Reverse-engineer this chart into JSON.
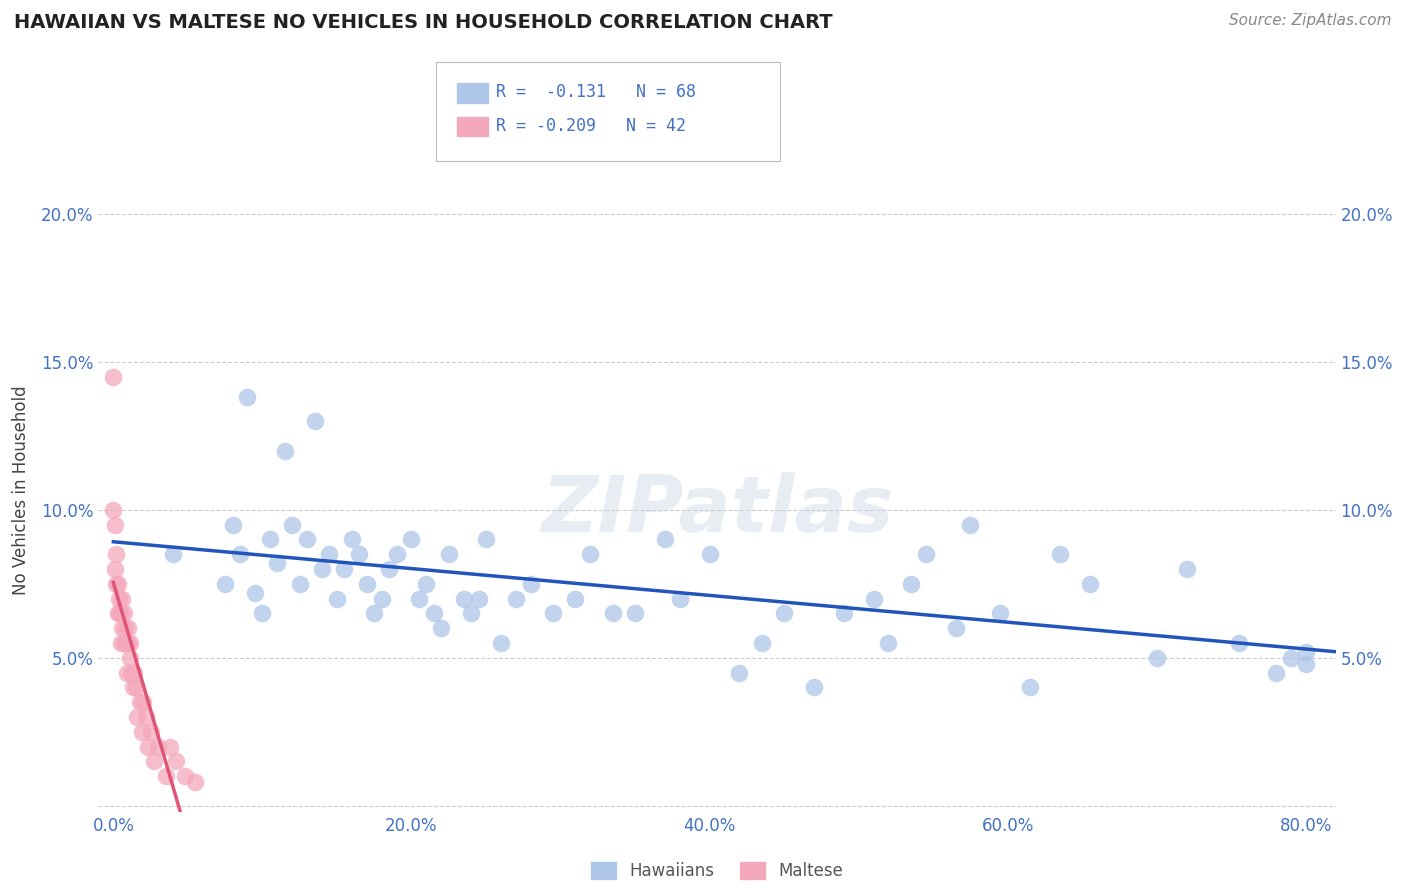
{
  "title": "HAWAIIAN VS MALTESE NO VEHICLES IN HOUSEHOLD CORRELATION CHART",
  "source": "Source: ZipAtlas.com",
  "ylabel": "No Vehicles in Household",
  "xlim": [
    -0.01,
    0.82
  ],
  "ylim": [
    -0.002,
    0.215
  ],
  "xticks": [
    0.0,
    0.2,
    0.4,
    0.6,
    0.8
  ],
  "xticklabels": [
    "0.0%",
    "20.0%",
    "40.0%",
    "60.0%",
    "80.0%"
  ],
  "yticks": [
    0.0,
    0.05,
    0.1,
    0.15,
    0.2
  ],
  "yticklabels": [
    "",
    "5.0%",
    "10.0%",
    "15.0%",
    "20.0%"
  ],
  "legend_r_hawaiian": "-0.131",
  "legend_n_hawaiian": "68",
  "legend_r_maltese": "-0.209",
  "legend_n_maltese": "42",
  "hawaiian_color": "#aec6e8",
  "maltese_color": "#f4a8bb",
  "trend_hawaiian_color": "#2255bb",
  "trend_maltese_color": "#e05575",
  "watermark": "ZIPatlas",
  "hawaiian_x": [
    0.04,
    0.075,
    0.08,
    0.085,
    0.09,
    0.095,
    0.1,
    0.105,
    0.11,
    0.115,
    0.12,
    0.125,
    0.13,
    0.135,
    0.14,
    0.145,
    0.15,
    0.155,
    0.16,
    0.165,
    0.17,
    0.175,
    0.18,
    0.185,
    0.19,
    0.2,
    0.205,
    0.21,
    0.215,
    0.22,
    0.225,
    0.235,
    0.24,
    0.245,
    0.25,
    0.26,
    0.27,
    0.28,
    0.295,
    0.31,
    0.32,
    0.335,
    0.35,
    0.37,
    0.38,
    0.4,
    0.42,
    0.435,
    0.45,
    0.47,
    0.49,
    0.51,
    0.52,
    0.535,
    0.545,
    0.565,
    0.575,
    0.595,
    0.615,
    0.635,
    0.655,
    0.7,
    0.72,
    0.755,
    0.78,
    0.79,
    0.8,
    0.8
  ],
  "hawaiian_y": [
    0.085,
    0.075,
    0.095,
    0.085,
    0.138,
    0.072,
    0.065,
    0.09,
    0.082,
    0.12,
    0.095,
    0.075,
    0.09,
    0.13,
    0.08,
    0.085,
    0.07,
    0.08,
    0.09,
    0.085,
    0.075,
    0.065,
    0.07,
    0.08,
    0.085,
    0.09,
    0.07,
    0.075,
    0.065,
    0.06,
    0.085,
    0.07,
    0.065,
    0.07,
    0.09,
    0.055,
    0.07,
    0.075,
    0.065,
    0.07,
    0.085,
    0.065,
    0.065,
    0.09,
    0.07,
    0.085,
    0.045,
    0.055,
    0.065,
    0.04,
    0.065,
    0.07,
    0.055,
    0.075,
    0.085,
    0.06,
    0.095,
    0.065,
    0.04,
    0.085,
    0.075,
    0.05,
    0.08,
    0.055,
    0.045,
    0.05,
    0.052,
    0.048
  ],
  "maltese_x": [
    0.0,
    0.0,
    0.001,
    0.001,
    0.002,
    0.002,
    0.003,
    0.003,
    0.004,
    0.004,
    0.005,
    0.005,
    0.006,
    0.006,
    0.007,
    0.007,
    0.008,
    0.008,
    0.009,
    0.009,
    0.01,
    0.01,
    0.011,
    0.011,
    0.012,
    0.013,
    0.014,
    0.015,
    0.016,
    0.018,
    0.019,
    0.02,
    0.022,
    0.023,
    0.025,
    0.027,
    0.03,
    0.035,
    0.038,
    0.042,
    0.048,
    0.055
  ],
  "maltese_y": [
    0.145,
    0.1,
    0.095,
    0.08,
    0.075,
    0.085,
    0.065,
    0.075,
    0.07,
    0.065,
    0.065,
    0.055,
    0.06,
    0.07,
    0.065,
    0.055,
    0.06,
    0.055,
    0.055,
    0.045,
    0.055,
    0.06,
    0.055,
    0.05,
    0.045,
    0.04,
    0.045,
    0.04,
    0.03,
    0.035,
    0.025,
    0.035,
    0.03,
    0.02,
    0.025,
    0.015,
    0.02,
    0.01,
    0.02,
    0.015,
    0.01,
    0.008
  ]
}
